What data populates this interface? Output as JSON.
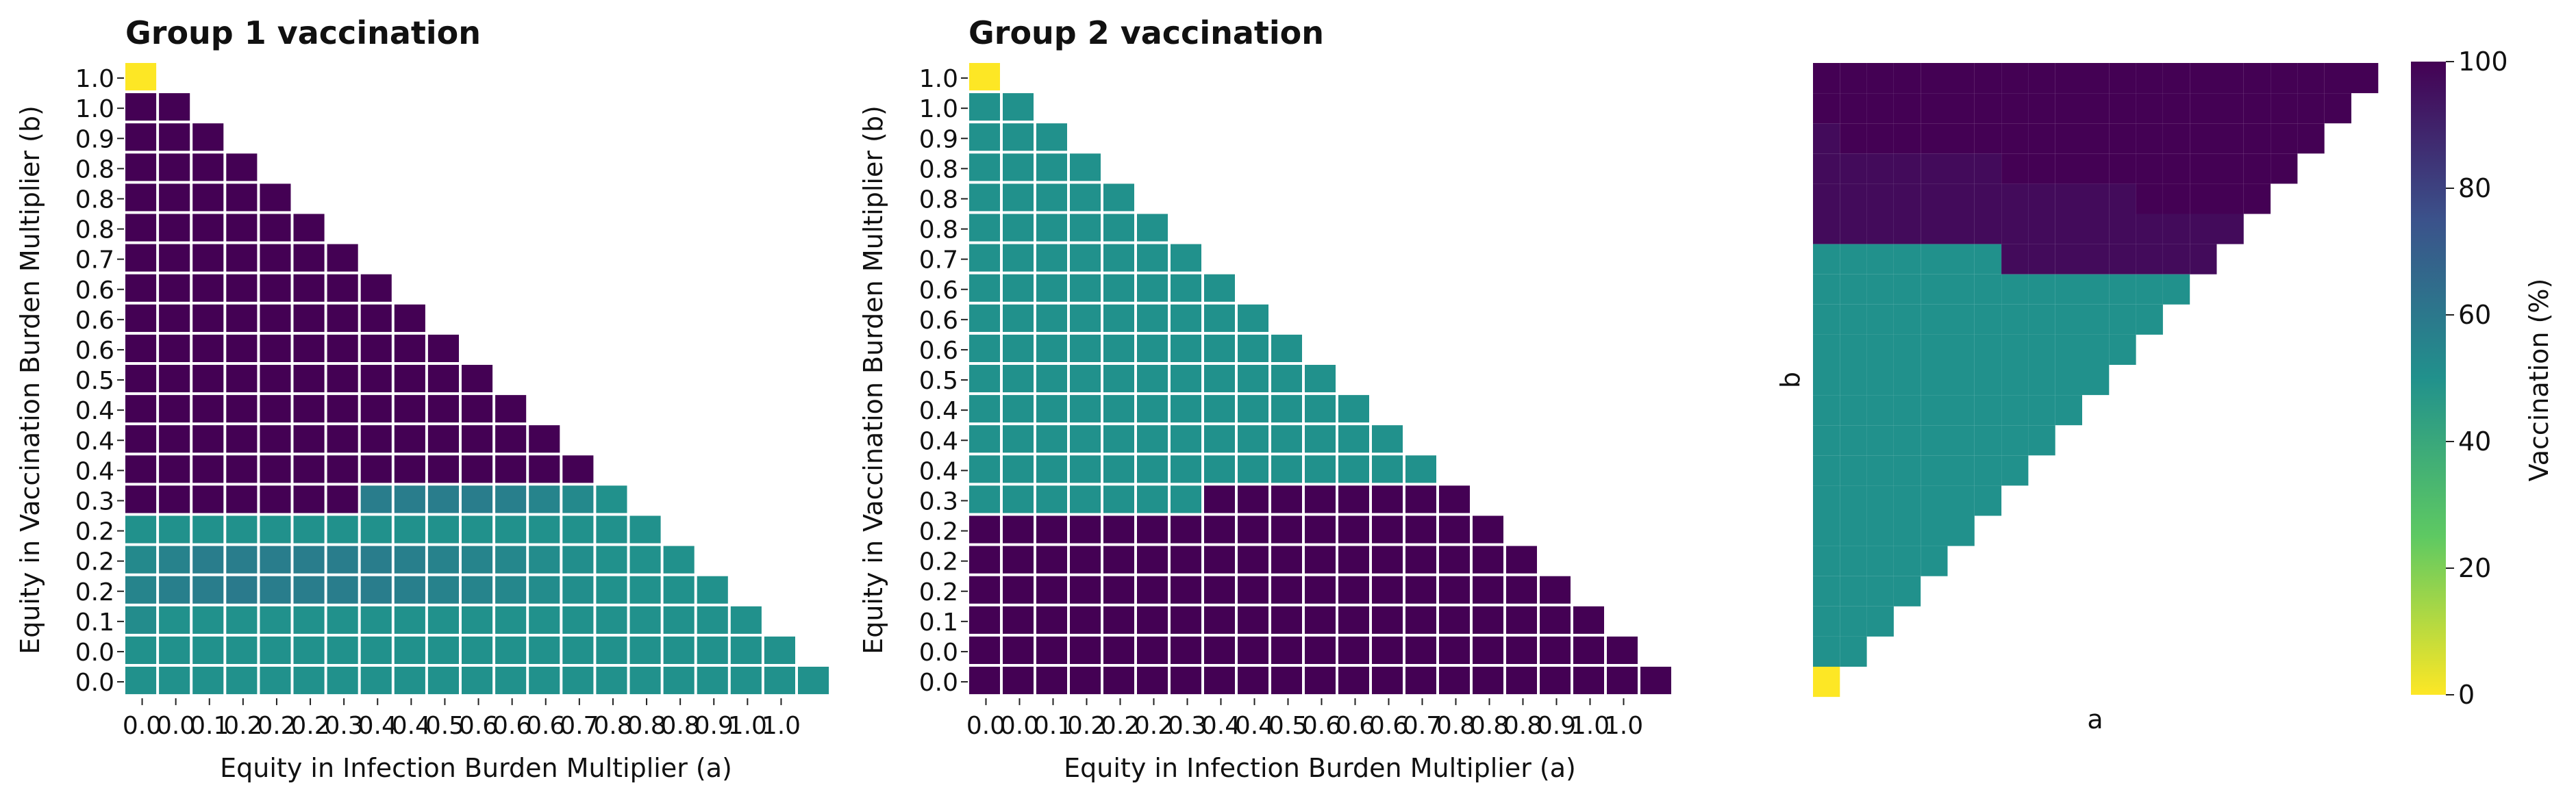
{
  "chart_data": [
    {
      "type": "heatmap",
      "title": "Group 1 vaccination",
      "xlabel": "Equity in Infection Burden Multiplier (a)",
      "ylabel": "Equity in Vaccination Burden Multiplier (b)",
      "x_tick_labels": [
        "0.0",
        "0.0",
        "0.1",
        "0.2",
        "0.2",
        "0.2",
        "0.3",
        "0.4",
        "0.4",
        "0.5",
        "0.6",
        "0.6",
        "0.6",
        "0.7",
        "0.8",
        "0.8",
        "0.8",
        "0.9",
        "1.0",
        "1.0"
      ],
      "y_tick_labels": [
        "1.0",
        "1.0",
        "0.9",
        "0.8",
        "0.8",
        "0.8",
        "0.7",
        "0.6",
        "0.6",
        "0.6",
        "0.5",
        "0.4",
        "0.4",
        "0.4",
        "0.3",
        "0.2",
        "0.2",
        "0.2",
        "0.1",
        "0.0",
        "0.0"
      ],
      "vmin": 0,
      "vmax": 100,
      "colormap": "viridis_r",
      "grid": "white cell borders",
      "rows": [
        [
          0
        ],
        [
          100,
          100
        ],
        [
          100,
          100,
          100
        ],
        [
          100,
          100,
          100,
          100
        ],
        [
          100,
          100,
          100,
          100,
          100
        ],
        [
          100,
          100,
          100,
          100,
          100,
          100
        ],
        [
          100,
          100,
          100,
          100,
          100,
          100,
          100
        ],
        [
          100,
          100,
          100,
          100,
          100,
          100,
          100,
          100
        ],
        [
          100,
          100,
          100,
          100,
          100,
          100,
          100,
          100,
          100
        ],
        [
          100,
          100,
          100,
          100,
          100,
          100,
          100,
          100,
          100,
          100
        ],
        [
          100,
          100,
          100,
          100,
          100,
          100,
          100,
          100,
          100,
          100,
          100
        ],
        [
          100,
          100,
          100,
          100,
          100,
          100,
          100,
          100,
          100,
          100,
          100,
          100
        ],
        [
          100,
          100,
          100,
          100,
          100,
          100,
          100,
          100,
          100,
          100,
          100,
          100,
          100
        ],
        [
          100,
          100,
          100,
          100,
          100,
          100,
          100,
          100,
          100,
          100,
          100,
          100,
          100,
          100
        ],
        [
          100,
          100,
          100,
          100,
          100,
          100,
          100,
          58,
          58,
          58,
          58,
          57,
          55,
          53,
          50
        ],
        [
          50,
          50,
          50,
          50,
          50,
          50,
          50,
          50,
          50,
          50,
          50,
          50,
          50,
          50,
          50,
          50
        ],
        [
          53,
          56,
          58,
          58,
          58,
          58,
          58,
          58,
          57,
          56,
          55,
          54,
          52,
          51,
          50,
          50,
          50
        ],
        [
          55,
          57,
          58,
          59,
          58,
          58,
          58,
          58,
          57,
          56,
          55,
          54,
          52,
          51,
          50,
          50,
          50,
          50
        ],
        [
          52,
          50,
          50,
          50,
          50,
          50,
          50,
          50,
          50,
          50,
          50,
          50,
          50,
          50,
          50,
          50,
          50,
          50,
          50
        ],
        [
          50,
          50,
          50,
          50,
          50,
          50,
          50,
          50,
          50,
          50,
          50,
          50,
          50,
          50,
          50,
          50,
          50,
          50,
          50,
          50
        ],
        [
          50,
          50,
          50,
          50,
          50,
          50,
          50,
          50,
          50,
          50,
          50,
          50,
          50,
          50,
          50,
          50,
          50,
          50,
          50,
          50,
          50
        ]
      ]
    },
    {
      "type": "heatmap",
      "title": "Group 2 vaccination",
      "xlabel": "Equity in Infection Burden Multiplier (a)",
      "ylabel": "Equity in Vaccination Burden Multiplier (b)",
      "x_tick_labels": [
        "0.0",
        "0.0",
        "0.1",
        "0.2",
        "0.2",
        "0.2",
        "0.3",
        "0.4",
        "0.4",
        "0.5",
        "0.6",
        "0.6",
        "0.6",
        "0.7",
        "0.8",
        "0.8",
        "0.8",
        "0.9",
        "1.0",
        "1.0"
      ],
      "y_tick_labels": [
        "1.0",
        "1.0",
        "0.9",
        "0.8",
        "0.8",
        "0.8",
        "0.7",
        "0.6",
        "0.6",
        "0.6",
        "0.5",
        "0.4",
        "0.4",
        "0.4",
        "0.3",
        "0.2",
        "0.2",
        "0.2",
        "0.1",
        "0.0",
        "0.0"
      ],
      "vmin": 0,
      "vmax": 100,
      "colormap": "viridis_r",
      "grid": "white cell borders",
      "rows": [
        [
          0
        ],
        [
          50,
          50
        ],
        [
          50,
          50,
          50
        ],
        [
          50,
          50,
          50,
          50
        ],
        [
          50,
          50,
          50,
          50,
          50
        ],
        [
          50,
          50,
          50,
          50,
          50,
          50
        ],
        [
          50,
          50,
          50,
          50,
          50,
          50,
          50
        ],
        [
          50,
          50,
          50,
          50,
          50,
          50,
          50,
          50
        ],
        [
          50,
          50,
          50,
          50,
          50,
          50,
          50,
          50,
          50
        ],
        [
          50,
          50,
          50,
          50,
          50,
          50,
          50,
          50,
          50,
          50
        ],
        [
          50,
          50,
          50,
          50,
          50,
          50,
          50,
          50,
          50,
          50,
          50
        ],
        [
          50,
          50,
          50,
          50,
          50,
          50,
          50,
          50,
          50,
          50,
          50,
          50
        ],
        [
          50,
          50,
          50,
          50,
          50,
          50,
          50,
          50,
          50,
          50,
          50,
          50,
          50
        ],
        [
          50,
          50,
          50,
          50,
          50,
          50,
          50,
          50,
          50,
          50,
          50,
          50,
          50,
          50
        ],
        [
          50,
          50,
          50,
          50,
          50,
          50,
          50,
          100,
          100,
          100,
          100,
          100,
          100,
          100,
          100
        ],
        [
          100,
          100,
          100,
          100,
          100,
          100,
          100,
          100,
          100,
          100,
          100,
          100,
          100,
          100,
          100,
          100
        ],
        [
          100,
          100,
          100,
          100,
          100,
          100,
          100,
          100,
          100,
          100,
          100,
          100,
          100,
          100,
          100,
          100,
          100
        ],
        [
          100,
          100,
          100,
          100,
          100,
          100,
          100,
          100,
          100,
          100,
          100,
          100,
          100,
          100,
          100,
          100,
          100,
          100
        ],
        [
          100,
          100,
          100,
          100,
          100,
          100,
          100,
          100,
          100,
          100,
          100,
          100,
          100,
          100,
          100,
          100,
          100,
          100,
          100
        ],
        [
          100,
          100,
          100,
          100,
          100,
          100,
          100,
          100,
          100,
          100,
          100,
          100,
          100,
          100,
          100,
          100,
          100,
          100,
          100,
          100
        ],
        [
          100,
          100,
          100,
          100,
          100,
          100,
          100,
          100,
          100,
          100,
          100,
          100,
          100,
          100,
          100,
          100,
          100,
          100,
          100,
          100,
          100
        ]
      ]
    },
    {
      "type": "heatmap",
      "title": "",
      "xlabel": "a",
      "ylabel": "b",
      "vmin": 0,
      "vmax": 100,
      "colormap": "viridis_r",
      "colorbar_label": "Vaccination (%)",
      "colorbar_ticks": [
        "0",
        "20",
        "40",
        "60",
        "80",
        "100"
      ],
      "rows": [
        [
          100,
          100,
          100,
          100,
          100,
          100,
          100,
          100,
          100,
          100,
          100,
          100,
          100,
          100,
          100,
          100,
          100,
          100,
          100,
          100,
          100
        ],
        [
          100,
          100,
          100,
          100,
          100,
          100,
          100,
          100,
          100,
          100,
          100,
          100,
          100,
          100,
          100,
          100,
          100,
          100,
          100,
          100
        ],
        [
          97,
          100,
          100,
          100,
          100,
          100,
          100,
          100,
          100,
          100,
          100,
          100,
          100,
          100,
          100,
          100,
          100,
          100,
          100
        ],
        [
          97,
          97,
          97,
          97,
          97,
          97,
          97,
          100,
          100,
          100,
          100,
          100,
          100,
          100,
          100,
          100,
          100,
          100
        ],
        [
          97,
          97,
          97,
          97,
          97,
          97,
          97,
          97,
          97,
          97,
          97,
          97,
          100,
          100,
          100,
          100,
          100
        ],
        [
          97,
          97,
          97,
          97,
          97,
          97,
          97,
          97,
          97,
          97,
          97,
          97,
          97,
          97,
          97,
          97
        ],
        [
          50,
          50,
          50,
          50,
          50,
          50,
          50,
          97,
          97,
          97,
          97,
          97,
          97,
          97,
          97
        ],
        [
          50,
          50,
          50,
          50,
          50,
          50,
          50,
          50,
          50,
          50,
          50,
          50,
          50,
          50
        ],
        [
          50,
          50,
          50,
          50,
          50,
          50,
          50,
          50,
          50,
          50,
          50,
          50,
          50
        ],
        [
          50,
          50,
          50,
          50,
          50,
          50,
          50,
          50,
          50,
          50,
          50,
          50
        ],
        [
          50,
          50,
          50,
          50,
          50,
          50,
          50,
          50,
          50,
          50,
          50
        ],
        [
          50,
          50,
          50,
          50,
          50,
          50,
          50,
          50,
          50,
          50
        ],
        [
          50,
          50,
          50,
          50,
          50,
          50,
          50,
          50,
          50
        ],
        [
          50,
          50,
          50,
          50,
          50,
          50,
          50,
          50
        ],
        [
          50,
          50,
          50,
          50,
          50,
          50,
          50
        ],
        [
          50,
          50,
          50,
          50,
          50,
          50
        ],
        [
          50,
          50,
          50,
          50,
          50
        ],
        [
          50,
          50,
          50,
          50
        ],
        [
          50,
          50,
          50
        ],
        [
          50,
          50
        ],
        [
          0
        ]
      ]
    }
  ]
}
